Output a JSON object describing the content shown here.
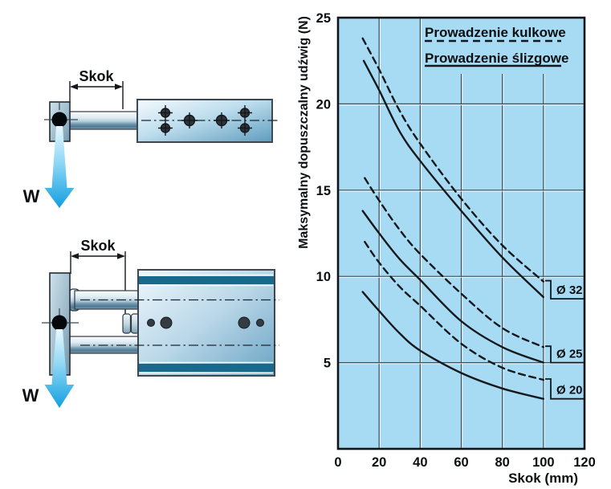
{
  "colors": {
    "chart_bg": "#a7dbf4",
    "grid": "#3d4d59",
    "curve": "#15181b",
    "teal_stripe": "#176a8c",
    "arrow_blue": "#119fe0",
    "text": "#0c0f12"
  },
  "diagrams": {
    "top": {
      "stroke_label": "Skok",
      "load_label": "W"
    },
    "bottom": {
      "stroke_label": "Skok",
      "load_label": "W"
    }
  },
  "chart_data": {
    "type": "line",
    "title": "",
    "xlabel": "Skok (mm)",
    "ylabel": "Maksymalny dopuszczalny udźwig (N)",
    "xlim": [
      0,
      120
    ],
    "ylim": [
      0,
      25
    ],
    "xticks": [
      0,
      20,
      40,
      60,
      80,
      100,
      120
    ],
    "yticks": [
      5,
      10,
      15,
      20,
      25
    ],
    "grid": true,
    "legend_position": "top-right",
    "legend": [
      {
        "label": "Prowadzenie kulkowe",
        "style": "dashed"
      },
      {
        "label": "Prowadzenie ślizgowe",
        "style": "solid"
      }
    ],
    "series": [
      {
        "name": "Ø 32 kulkowe",
        "group": "Ø 32",
        "style": "dashed",
        "x": [
          12,
          20,
          30,
          40,
          60,
          80,
          100
        ],
        "y": [
          23.8,
          22.0,
          19.6,
          17.7,
          14.5,
          11.8,
          9.7
        ]
      },
      {
        "name": "Ø 32 ślizgowe",
        "group": "Ø 32",
        "style": "solid",
        "x": [
          12.5,
          20,
          30,
          40,
          60,
          80,
          100
        ],
        "y": [
          22.5,
          20.8,
          18.4,
          16.7,
          13.8,
          11.1,
          8.8
        ]
      },
      {
        "name": "Ø 25 kulkowe",
        "group": "Ø 25",
        "style": "dashed",
        "x": [
          13,
          20,
          30,
          40,
          60,
          80,
          100
        ],
        "y": [
          15.7,
          14.4,
          12.7,
          11.3,
          9.0,
          7.0,
          5.9
        ]
      },
      {
        "name": "Ø 25 ślizgowe",
        "group": "Ø 25",
        "style": "solid",
        "x": [
          12,
          20,
          30,
          40,
          60,
          80,
          100
        ],
        "y": [
          13.8,
          12.5,
          11.0,
          9.8,
          7.4,
          5.9,
          5.0
        ]
      },
      {
        "name": "Ø 20 kulkowe",
        "group": "Ø 20",
        "style": "dashed",
        "x": [
          13,
          20,
          30,
          40,
          60,
          80,
          100
        ],
        "y": [
          12.0,
          10.8,
          9.4,
          8.3,
          6.1,
          4.7,
          4.0
        ]
      },
      {
        "name": "Ø 20 ślizgowe",
        "group": "Ø 20",
        "style": "solid",
        "x": [
          12,
          20,
          30,
          40,
          60,
          80,
          100
        ],
        "y": [
          9.1,
          8.0,
          6.7,
          5.7,
          4.4,
          3.5,
          2.9
        ]
      }
    ],
    "diameter_groups": [
      {
        "label": "Ø 32",
        "bracket_top": 9.75,
        "bracket_bottom": 8.7
      },
      {
        "label": "Ø 25",
        "bracket_top": 5.95,
        "bracket_bottom": 5.0
      },
      {
        "label": "Ø 20",
        "bracket_top": 4.05,
        "bracket_bottom": 2.9
      }
    ]
  }
}
